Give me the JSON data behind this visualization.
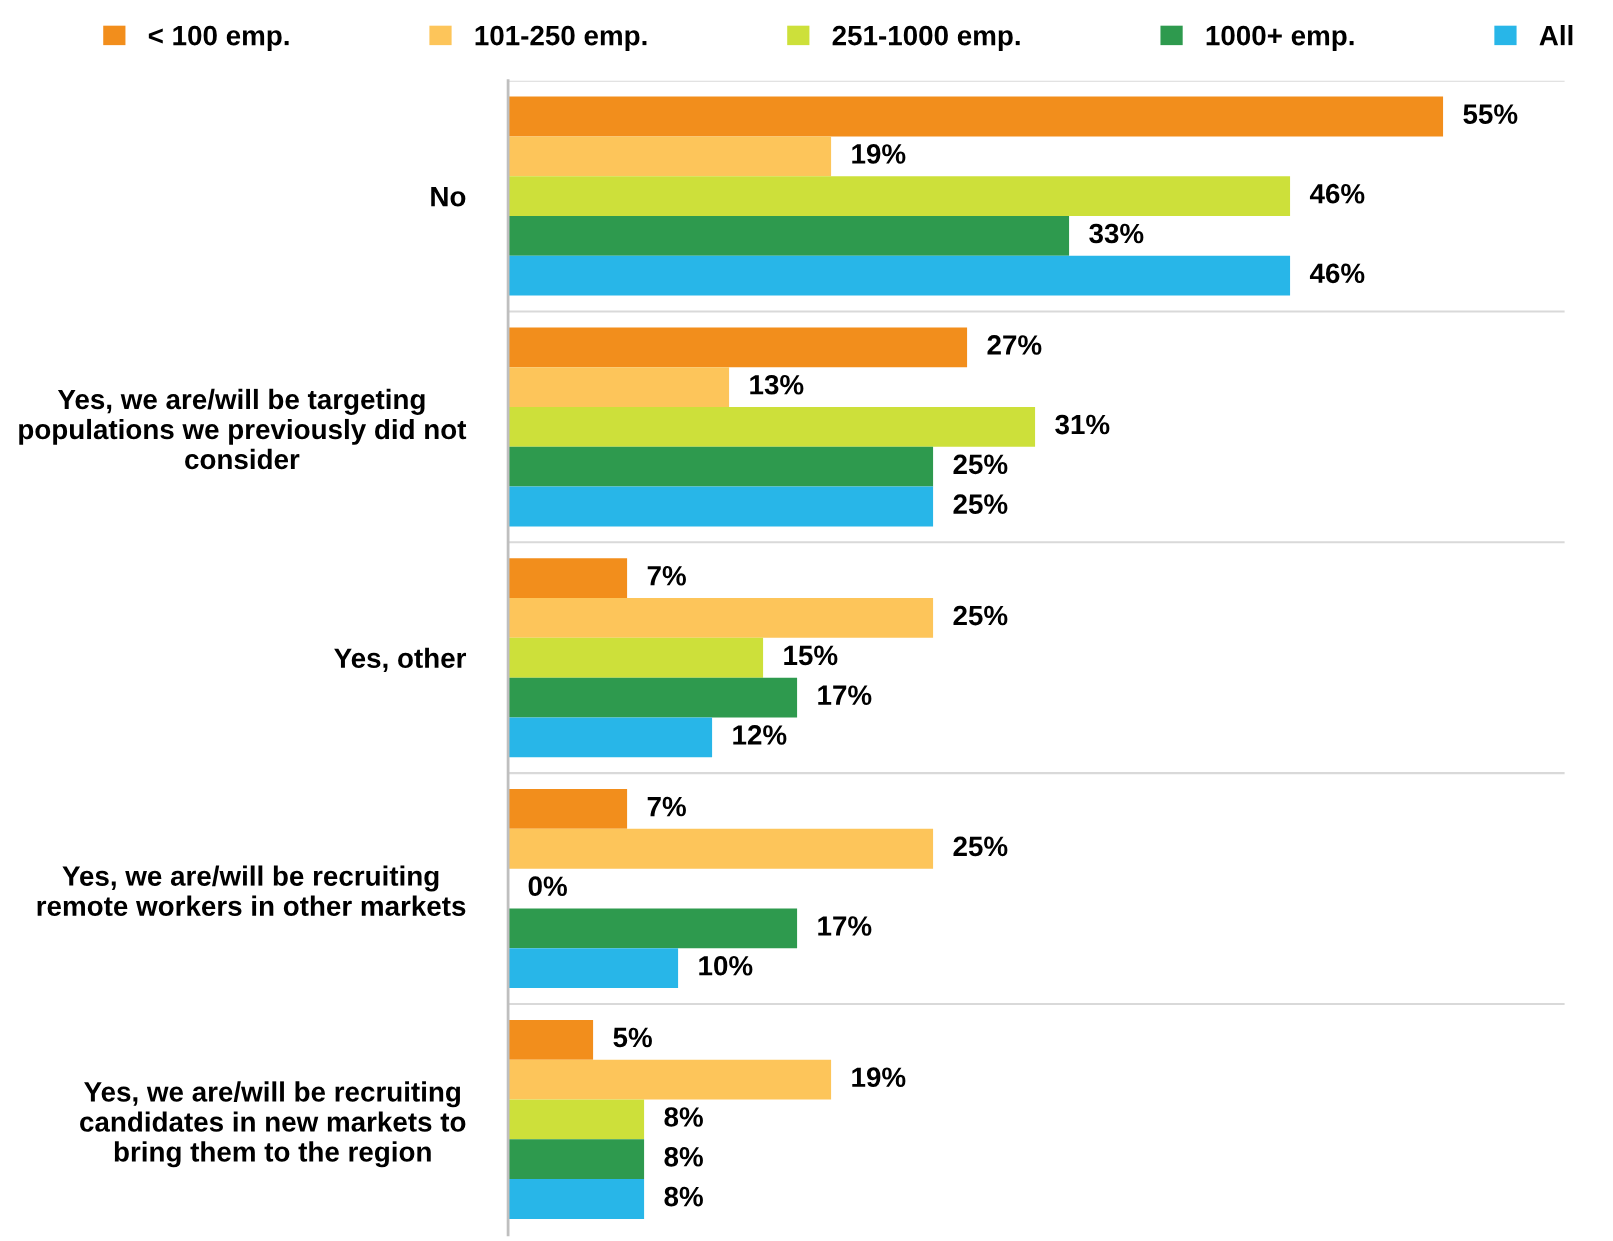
{
  "chart_data": {
    "type": "bar",
    "orientation": "horizontal",
    "categories": [
      "No",
      "Yes, we are/will be targeting\npopulations we previously did not\nconsider",
      "Yes, other",
      "Yes, we are/will be recruiting\nremote workers in other markets",
      "Yes, we are/will be recruiting\ncandidates in new markets to\nbring them to the region"
    ],
    "series": [
      {
        "name": "< 100 emp.",
        "color": "#f28e1c",
        "values": [
          55,
          27,
          7,
          7,
          5
        ],
        "value_labels": [
          "55%",
          "27%",
          "7%",
          "7%",
          "5%"
        ]
      },
      {
        "name": "101-250 emp.",
        "color": "#fdc55a",
        "values": [
          19,
          13,
          25,
          25,
          19
        ],
        "value_labels": [
          "19%",
          "13%",
          "25%",
          "25%",
          "19%"
        ]
      },
      {
        "name": "251-1000 emp.",
        "color": "#cde03a",
        "values": [
          46,
          31,
          15,
          0,
          8
        ],
        "value_labels": [
          "46%",
          "31%",
          "15%",
          "0%",
          "8%"
        ]
      },
      {
        "name": "1000+ emp.",
        "color": "#2e9a4e",
        "values": [
          33,
          25,
          17,
          17,
          8
        ],
        "value_labels": [
          "33%",
          "25%",
          "17%",
          "17%",
          "8%"
        ]
      },
      {
        "name": "All",
        "color": "#28b6e8",
        "values": [
          46,
          25,
          12,
          10,
          8
        ],
        "value_labels": [
          "46%",
          "25%",
          "12%",
          "10%",
          "8%"
        ]
      }
    ],
    "legend": "top",
    "grid": "y",
    "tick_labels": "y"
  }
}
